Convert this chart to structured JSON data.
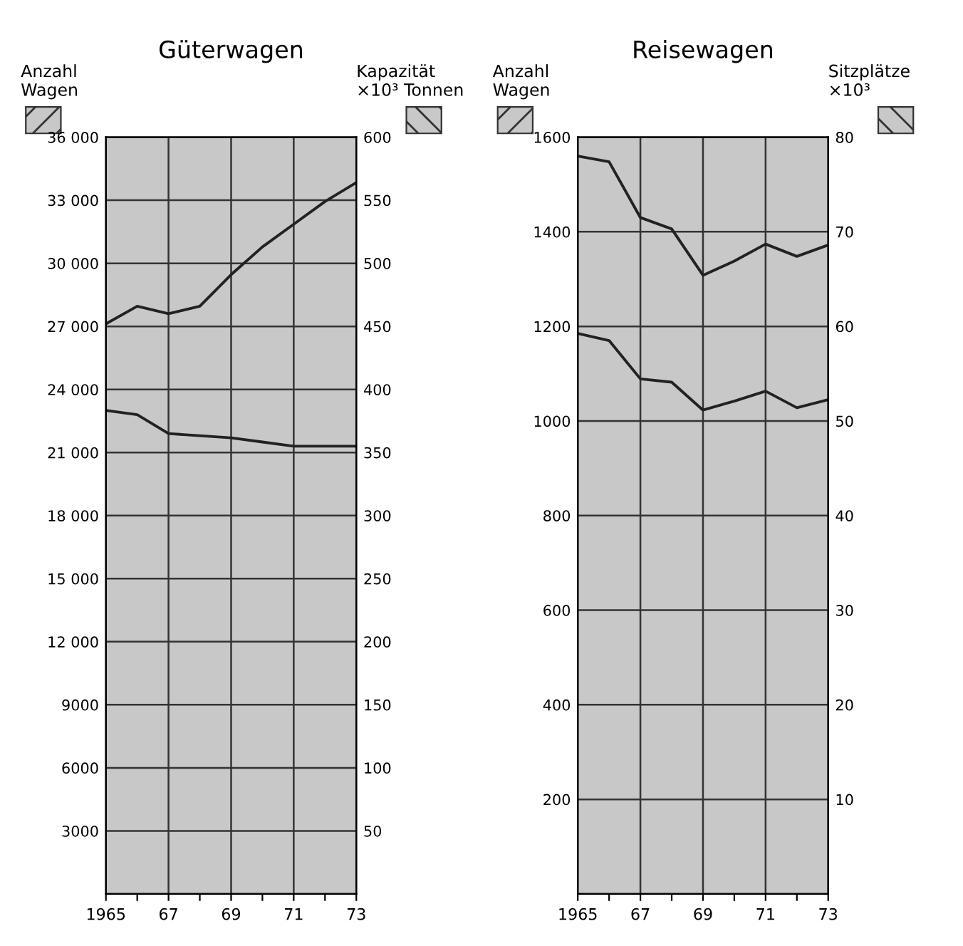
{
  "chart_data": [
    {
      "type": "line",
      "title": "Güterwagen",
      "ylabel": "Anzahl\nWagen",
      "y2label": "Kapazität\n×10³ Tonnen",
      "grid": true,
      "x": [
        1965,
        1966,
        1967,
        1968,
        1969,
        1970,
        1971,
        1972,
        1973
      ],
      "xlim": [
        1965,
        1973
      ],
      "xticks": [
        {
          "value": 1965,
          "label": "1965"
        },
        {
          "value": 1966,
          "label": null
        },
        {
          "value": 1967,
          "label": "67"
        },
        {
          "value": 1968,
          "label": null
        },
        {
          "value": 1969,
          "label": "69"
        },
        {
          "value": 1970,
          "label": null
        },
        {
          "value": 1971,
          "label": "71"
        },
        {
          "value": 1972,
          "label": null
        },
        {
          "value": 1973,
          "label": "73"
        }
      ],
      "ylim": [
        0,
        36000
      ],
      "yticks": [
        {
          "value": 3000,
          "label": "3000"
        },
        {
          "value": 6000,
          "label": "6000"
        },
        {
          "value": 9000,
          "label": "9000"
        },
        {
          "value": 12000,
          "label": "12 000"
        },
        {
          "value": 15000,
          "label": "15 000"
        },
        {
          "value": 18000,
          "label": "18 000"
        },
        {
          "value": 21000,
          "label": "21 000"
        },
        {
          "value": 24000,
          "label": "24 000"
        },
        {
          "value": 27000,
          "label": "27 000"
        },
        {
          "value": 30000,
          "label": "30 000"
        },
        {
          "value": 33000,
          "label": "33 000"
        },
        {
          "value": 36000,
          "label": "36 000"
        }
      ],
      "y2lim": [
        0,
        600
      ],
      "y2ticks": [
        50,
        100,
        150,
        200,
        250,
        300,
        350,
        400,
        450,
        500,
        550,
        600
      ],
      "series": [
        {
          "color": "#222222",
          "values": [
            23000,
            22800,
            21900,
            21800,
            21700,
            21500,
            21300,
            21300,
            21300
          ]
        },
        {
          "color": "#222222",
          "axis": "y2",
          "values": [
            452,
            466,
            460,
            466,
            491,
            513,
            531,
            549,
            564
          ]
        }
      ]
    },
    {
      "type": "line",
      "title": "Reisewagen",
      "ylabel": "Anzahl\nWagen",
      "y2label": "Sitzplätze\n×10³",
      "grid": true,
      "x": [
        1965,
        1966,
        1967,
        1968,
        1969,
        1970,
        1971,
        1972,
        1973
      ],
      "xlim": [
        1965,
        1973
      ],
      "xticks": [
        {
          "value": 1965,
          "label": "1965"
        },
        {
          "value": 1966,
          "label": null
        },
        {
          "value": 1967,
          "label": "67"
        },
        {
          "value": 1968,
          "label": null
        },
        {
          "value": 1969,
          "label": "69"
        },
        {
          "value": 1970,
          "label": null
        },
        {
          "value": 1971,
          "label": "71"
        },
        {
          "value": 1972,
          "label": null
        },
        {
          "value": 1973,
          "label": "73"
        }
      ],
      "ylim": [
        0,
        1600
      ],
      "yticks": [
        200,
        400,
        600,
        800,
        1000,
        1200,
        1400,
        1600
      ],
      "y2lim": [
        0,
        80
      ],
      "y2ticks": [
        10,
        20,
        30,
        40,
        50,
        60,
        70,
        80
      ],
      "series": [
        {
          "color": "#222222",
          "values": [
            1185,
            1170,
            1089,
            1082,
            1023,
            1042,
            1063,
            1028,
            1045
          ]
        },
        {
          "color": "#222222",
          "axis": "y2",
          "values": [
            78.0,
            77.4,
            71.5,
            70.3,
            65.4,
            66.9,
            68.7,
            67.4,
            68.6
          ]
        }
      ]
    }
  ]
}
